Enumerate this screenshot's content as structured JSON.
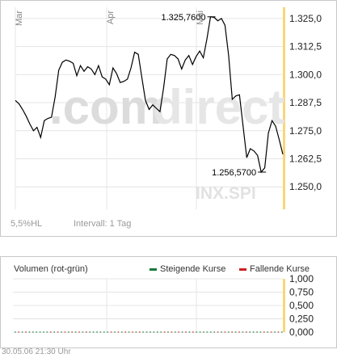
{
  "chart_data": [
    {
      "type": "line",
      "title": "",
      "watermark": {
        "prefix": ".com",
        "brand": "direct",
        "symbol": "INX.SPI"
      },
      "x_labels": [
        "Mar",
        "Apr",
        "Mai"
      ],
      "y_ticks": [
        "1.250,0",
        "1.262,5",
        "1.275,0",
        "1.287,5",
        "1.300,0",
        "1.312,5",
        "1.325,0"
      ],
      "ylim": [
        1240,
        1330
      ],
      "grid": true,
      "series": [
        {
          "values": [
            1288.5,
            1287.0,
            1284.5,
            1281.5,
            1278.0,
            1275.0,
            1276.5,
            1272.0,
            1279.5,
            1280.5,
            1281.0,
            1290.0,
            1302.0,
            1305.5,
            1306.5,
            1306.0,
            1305.0,
            1299.5,
            1304.0,
            1301.5,
            1303.5,
            1302.5,
            1300.0,
            1304.0,
            1299.0,
            1298.0,
            1295.5,
            1303.0,
            1300.5,
            1296.5,
            1297.0,
            1298.0,
            1303.0,
            1310.0,
            1309.0,
            1298.5,
            1288.5,
            1284.5,
            1286.5,
            1285.0,
            1283.5,
            1294.0,
            1307.0,
            1309.0,
            1308.5,
            1307.0,
            1302.5,
            1306.5,
            1308.5,
            1304.5,
            1308.0,
            1310.5,
            1307.5,
            1316.0,
            1325.76,
            1325.5,
            1324.0,
            1325.0,
            1322.0,
            1308.5,
            1289.0,
            1290.5,
            1291.0,
            1277.0,
            1263.0,
            1267.0,
            1266.0,
            1264.0,
            1256.57,
            1258.5,
            1274.0,
            1279.5,
            1277.0,
            1271.0,
            1264.5
          ]
        }
      ],
      "annotations": [
        {
          "text": "1.325,7600",
          "value": 1325.76
        },
        {
          "text": "1.256,5700",
          "value": 1256.57
        }
      ],
      "hl_label": "5,5%HL",
      "interval_label": "Intervall: 1 Tag"
    },
    {
      "type": "bar",
      "title": "Volumen (rot-grün)",
      "y_ticks": [
        "0,000",
        "0,250",
        "0,500",
        "0,750",
        "1,000"
      ],
      "ylim": [
        0,
        1
      ],
      "legend": [
        {
          "label": "Steigende Kurse",
          "color": "#1a7a3a"
        },
        {
          "label": "Fallende Kurse",
          "color": "#cc2020"
        }
      ],
      "series": [
        {
          "name": "Steigende Kurse",
          "values": []
        },
        {
          "name": "Fallende Kurse",
          "values": []
        }
      ]
    }
  ],
  "footer": {
    "timestamp": "30.05.06    21:30 Uhr"
  },
  "colors": {
    "line": "#000000",
    "right_band": "#f6d77b",
    "grid": "#e4e4e4"
  }
}
